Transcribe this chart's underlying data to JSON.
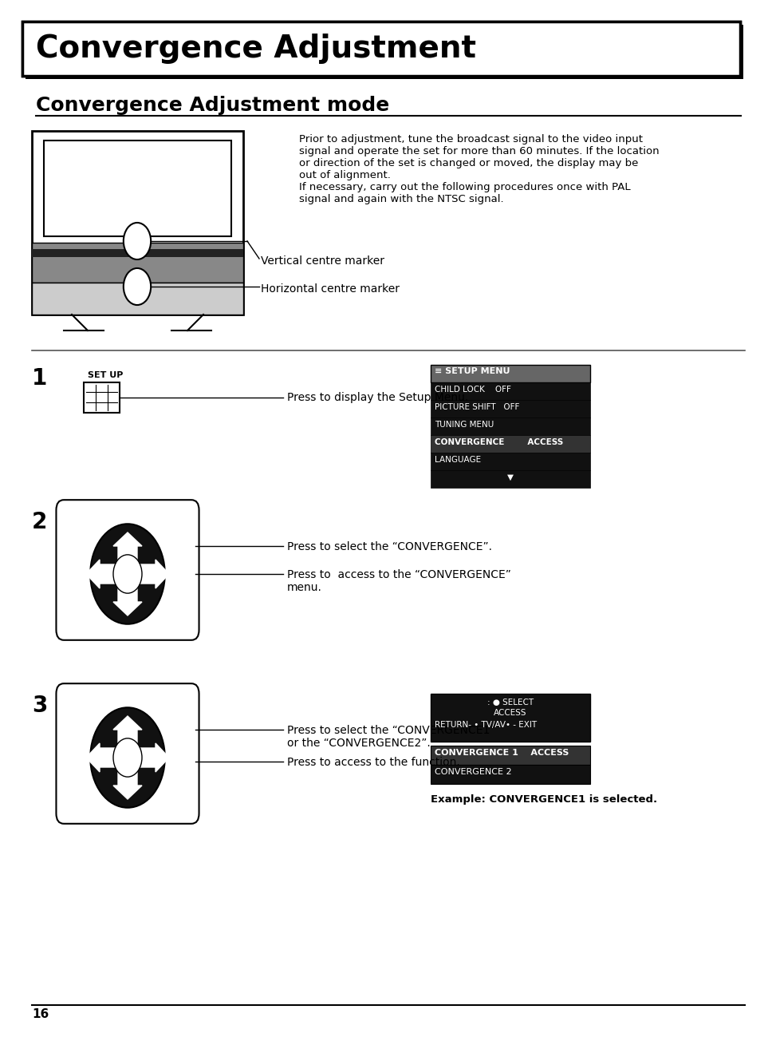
{
  "title_box_text": "Convergence Adjustment",
  "subtitle_text": "Convergence Adjustment mode",
  "body_text_1": "Prior to adjustment, tune the broadcast signal to the video input\nsignal and operate the set for more than 60 minutes. If the location\nor direction of the set is changed or moved, the display may be\nout of alignment.\nIf necessary, carry out the following procedures once with PAL\nsignal and again with the NTSC signal.",
  "vertical_marker_label": "Vertical centre marker",
  "horizontal_marker_label": "Horizontal centre marker",
  "step1_number": "1",
  "step1_label": "SET UP",
  "step1_text": "Press to display the Setup Menu.",
  "step2_number": "2",
  "step2_text1": "Press to select the “CONVERGENCE”.",
  "step2_text2": "Press to  access to the “CONVERGENCE”\nmenu.",
  "step3_number": "3",
  "step3_text1": "Press to select the “CONVERGENCE1”\nor the “CONVERGENCE2”.",
  "step3_text2": "Press to access to the function.",
  "step3_example": "Example: CONVERGENCE1 is selected.",
  "menu1_title": "≡ SETUP MENU",
  "menu1_items": [
    "CHILD LOCK    OFF",
    "PICTURE SHIFT   OFF",
    "TUNING MENU",
    "CONVERGENCE        ACCESS",
    "LANGUAGE",
    "▼"
  ],
  "menu2_top": ": SELECT\nACCESS\nRETURN- • TV/AV• - EXIT",
  "menu2_items": [
    "CONVERGENCE 1    ACCESS",
    "CONVERGENCE 2"
  ],
  "page_number": "16",
  "bg_color": "#ffffff",
  "title_bg": "#000000",
  "title_fg": "#ffffff",
  "menu_bg": "#000000",
  "menu_fg": "#ffffff",
  "menu_highlight": "#444444"
}
